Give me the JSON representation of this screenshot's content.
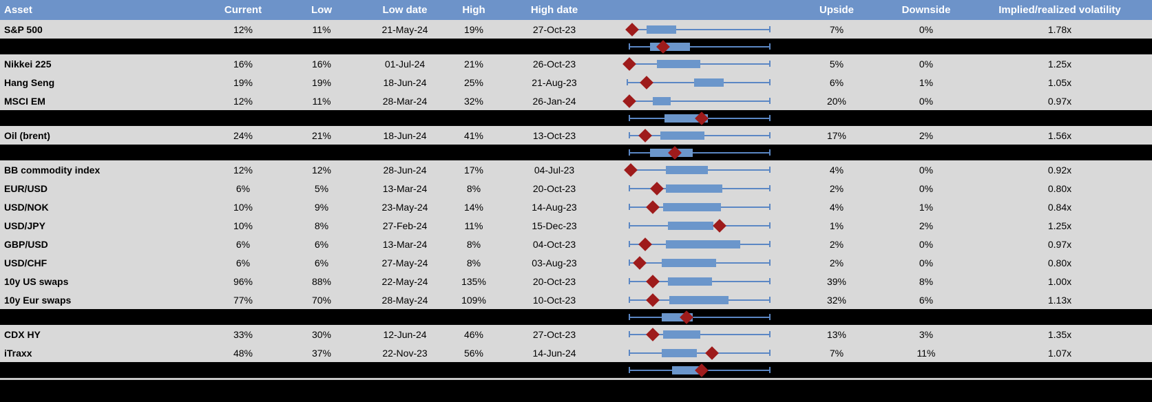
{
  "colors": {
    "header_bg": "#6d93c9",
    "header_text": "#ffffff",
    "row_bg": "#d9d9d9",
    "band_bg": "#000000",
    "box_fill": "#6b96cb",
    "whisker": "#5b87c4",
    "marker": "#9e1b1b",
    "rule": "#c8c8c8",
    "text": "#000000"
  },
  "chart_data": {
    "type": "table",
    "title": "Implied volatility ranges by asset with box-whisker plots",
    "boxplot_note": "box values are normalized 0-100 across the plot column width; marker is the red diamond (current level)",
    "columns": [
      "Asset",
      "Current",
      "Low",
      "Low date",
      "High",
      "High date",
      "",
      "Upside",
      "Downside",
      "Implied/realized volatility"
    ],
    "rows": [
      {
        "type": "data",
        "asset": "S&P 500",
        "current": "12%",
        "low": "11%",
        "low_date": "21-May-24",
        "high": "19%",
        "high_date": "27-Oct-23",
        "upside": "7%",
        "downside": "0%",
        "implied_realized": "1.78x",
        "box": {
          "whisker_min": 6,
          "q1": 16,
          "q3": 36,
          "whisker_max": 99,
          "marker": 6
        }
      },
      {
        "type": "band",
        "box": {
          "whisker_min": 4,
          "q1": 18,
          "q3": 45,
          "whisker_max": 99,
          "marker": 27
        }
      },
      {
        "type": "data",
        "asset": "Nikkei 225",
        "current": "16%",
        "low": "16%",
        "low_date": "01-Jul-24",
        "high": "21%",
        "high_date": "26-Oct-23",
        "upside": "5%",
        "downside": "0%",
        "implied_realized": "1.25x",
        "box": {
          "whisker_min": 4,
          "q1": 23,
          "q3": 52,
          "whisker_max": 99,
          "marker": 4
        }
      },
      {
        "type": "data",
        "asset": "Hang Seng",
        "current": "19%",
        "low": "19%",
        "low_date": "18-Jun-24",
        "high": "25%",
        "high_date": "21-Aug-23",
        "upside": "6%",
        "downside": "1%",
        "implied_realized": "1.05x",
        "box": {
          "whisker_min": 3,
          "q1": 48,
          "q3": 68,
          "whisker_max": 99,
          "marker": 16
        }
      },
      {
        "type": "data",
        "asset": "MSCI EM",
        "current": "12%",
        "low": "11%",
        "low_date": "28-Mar-24",
        "high": "32%",
        "high_date": "26-Jan-24",
        "upside": "20%",
        "downside": "0%",
        "implied_realized": "0.97x",
        "box": {
          "whisker_min": 4,
          "q1": 20,
          "q3": 32,
          "whisker_max": 99,
          "marker": 4
        }
      },
      {
        "type": "band",
        "box": {
          "whisker_min": 4,
          "q1": 28,
          "q3": 57,
          "whisker_max": 99,
          "marker": 53
        }
      },
      {
        "type": "data",
        "asset": "Oil (brent)",
        "current": "24%",
        "low": "21%",
        "low_date": "18-Jun-24",
        "high": "41%",
        "high_date": "13-Oct-23",
        "upside": "17%",
        "downside": "2%",
        "implied_realized": "1.56x",
        "box": {
          "whisker_min": 4,
          "q1": 25,
          "q3": 55,
          "whisker_max": 99,
          "marker": 15
        }
      },
      {
        "type": "band",
        "box": {
          "whisker_min": 4,
          "q1": 18,
          "q3": 47,
          "whisker_max": 99,
          "marker": 35
        }
      },
      {
        "type": "data",
        "asset": "BB commodity index",
        "current": "12%",
        "low": "12%",
        "low_date": "28-Jun-24",
        "high": "17%",
        "high_date": "04-Jul-23",
        "upside": "4%",
        "downside": "0%",
        "implied_realized": "0.92x",
        "box": {
          "whisker_min": 5,
          "q1": 29,
          "q3": 57,
          "whisker_max": 99,
          "marker": 5
        }
      },
      {
        "type": "data",
        "asset": "EUR/USD",
        "current": "6%",
        "low": "5%",
        "low_date": "13-Mar-24",
        "high": "8%",
        "high_date": "20-Oct-23",
        "upside": "2%",
        "downside": "0%",
        "implied_realized": "0.80x",
        "box": {
          "whisker_min": 4,
          "q1": 29,
          "q3": 67,
          "whisker_max": 99,
          "marker": 23
        }
      },
      {
        "type": "data",
        "asset": "USD/NOK",
        "current": "10%",
        "low": "9%",
        "low_date": "23-May-24",
        "high": "14%",
        "high_date": "14-Aug-23",
        "upside": "4%",
        "downside": "1%",
        "implied_realized": "0.84x",
        "box": {
          "whisker_min": 4,
          "q1": 27,
          "q3": 66,
          "whisker_max": 99,
          "marker": 20
        }
      },
      {
        "type": "data",
        "asset": "USD/JPY",
        "current": "10%",
        "low": "8%",
        "low_date": "27-Feb-24",
        "high": "11%",
        "high_date": "15-Dec-23",
        "upside": "1%",
        "downside": "2%",
        "implied_realized": "1.25x",
        "box": {
          "whisker_min": 4,
          "q1": 30,
          "q3": 61,
          "whisker_max": 99,
          "marker": 65
        }
      },
      {
        "type": "data",
        "asset": "GBP/USD",
        "current": "6%",
        "low": "6%",
        "low_date": "13-Mar-24",
        "high": "8%",
        "high_date": "04-Oct-23",
        "upside": "2%",
        "downside": "0%",
        "implied_realized": "0.97x",
        "box": {
          "whisker_min": 4,
          "q1": 29,
          "q3": 79,
          "whisker_max": 99,
          "marker": 15
        }
      },
      {
        "type": "data",
        "asset": "USD/CHF",
        "current": "6%",
        "low": "6%",
        "low_date": "27-May-24",
        "high": "8%",
        "high_date": "03-Aug-23",
        "upside": "2%",
        "downside": "0%",
        "implied_realized": "0.80x",
        "box": {
          "whisker_min": 4,
          "q1": 26,
          "q3": 63,
          "whisker_max": 99,
          "marker": 11
        }
      },
      {
        "type": "data",
        "asset": "10y US swaps",
        "current": "96%",
        "low": "88%",
        "low_date": "22-May-24",
        "high": "135%",
        "high_date": "20-Oct-23",
        "upside": "39%",
        "downside": "8%",
        "implied_realized": "1.00x",
        "box": {
          "whisker_min": 4,
          "q1": 30,
          "q3": 60,
          "whisker_max": 99,
          "marker": 20
        }
      },
      {
        "type": "data",
        "asset": "10y Eur swaps",
        "current": "77%",
        "low": "70%",
        "low_date": "28-May-24",
        "high": "109%",
        "high_date": "10-Oct-23",
        "upside": "32%",
        "downside": "6%",
        "implied_realized": "1.13x",
        "box": {
          "whisker_min": 4,
          "q1": 31,
          "q3": 71,
          "whisker_max": 99,
          "marker": 20
        }
      },
      {
        "type": "band",
        "box": {
          "whisker_min": 4,
          "q1": 26,
          "q3": 47,
          "whisker_max": 99,
          "marker": 43
        }
      },
      {
        "type": "data",
        "asset": "CDX HY",
        "current": "33%",
        "low": "30%",
        "low_date": "12-Jun-24",
        "high": "46%",
        "high_date": "27-Oct-23",
        "upside": "13%",
        "downside": "3%",
        "implied_realized": "1.35x",
        "box": {
          "whisker_min": 4,
          "q1": 27,
          "q3": 52,
          "whisker_max": 99,
          "marker": 20
        }
      },
      {
        "type": "data",
        "asset": "iTraxx",
        "current": "48%",
        "low": "37%",
        "low_date": "22-Nov-23",
        "high": "56%",
        "high_date": "14-Jun-24",
        "upside": "7%",
        "downside": "11%",
        "implied_realized": "1.07x",
        "box": {
          "whisker_min": 4,
          "q1": 26,
          "q3": 50,
          "whisker_max": 99,
          "marker": 60
        }
      },
      {
        "type": "band",
        "box": {
          "whisker_min": 4,
          "q1": 33,
          "q3": 52,
          "whisker_max": 99,
          "marker": 53
        }
      },
      {
        "type": "rule"
      },
      {
        "type": "footer-band"
      }
    ]
  }
}
